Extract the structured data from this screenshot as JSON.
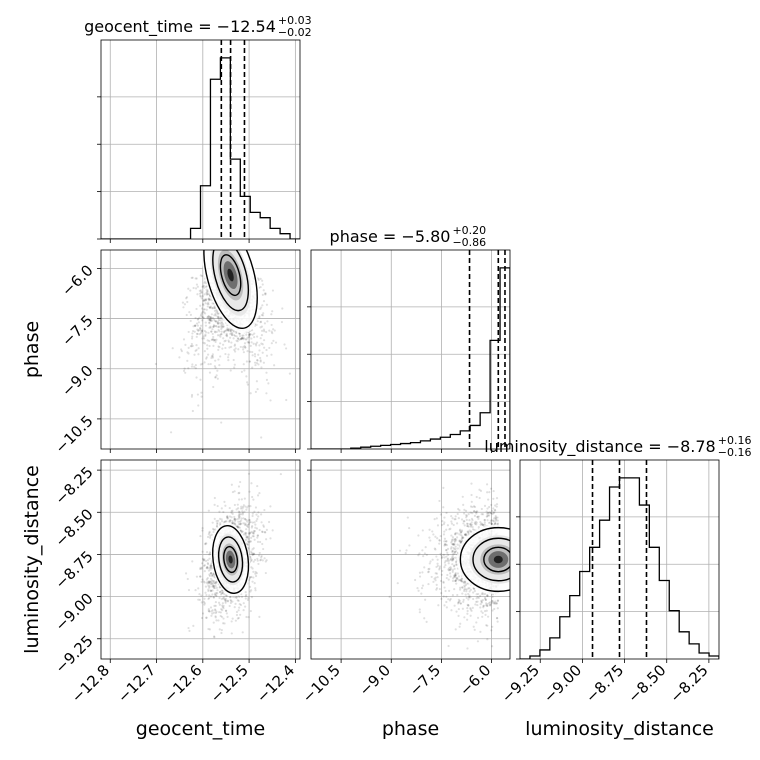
{
  "chart_data": {
    "type": "corner",
    "parameters": [
      "geocent_time",
      "phase",
      "luminosity_distance"
    ],
    "diagonal_titles": [
      {
        "prefix": "geocent_time = −12.54",
        "plus": "+0.03",
        "minus": "−0.02"
      },
      {
        "prefix": "phase = −5.80",
        "plus": "+0.20",
        "minus": "−0.86"
      },
      {
        "prefix": "luminosity_distance = −8.78",
        "plus": "+0.16",
        "minus": "−0.16"
      }
    ],
    "axes": {
      "geocent_time": {
        "range": [
          -12.82,
          -12.39
        ],
        "ticks": [
          -12.8,
          -12.7,
          -12.6,
          -12.5,
          -12.4
        ],
        "tick_labels": [
          "−12.8",
          "−12.7",
          "−12.6",
          "−12.5",
          "−12.4"
        ]
      },
      "phase": {
        "range": [
          -11.4,
          -5.45
        ],
        "ticks": [
          -10.5,
          -9.0,
          -7.5,
          -6.0
        ],
        "tick_labels": [
          "−10.5",
          "−9.0",
          "−7.5",
          "−6.0"
        ]
      },
      "luminosity_distance": {
        "range": [
          -9.37,
          -8.19
        ],
        "ticks": [
          -9.25,
          -9.0,
          -8.75,
          -8.5,
          -8.25
        ],
        "tick_labels": [
          "−9.25",
          "−9.00",
          "−8.75",
          "−8.50",
          "−8.25"
        ]
      }
    },
    "histograms": [
      {
        "param": "geocent_time",
        "bins": [
          -12.82,
          -12.7985,
          -12.777,
          -12.7555,
          -12.734,
          -12.7125,
          -12.691,
          -12.6695,
          -12.648,
          -12.6265,
          -12.605,
          -12.5835,
          -12.562,
          -12.5405,
          -12.519,
          -12.4975,
          -12.476,
          -12.4545,
          -12.433,
          -12.4115,
          -12.39
        ],
        "counts": [
          0,
          0,
          0,
          0,
          0,
          0,
          0,
          0,
          0,
          2,
          10,
          30,
          34,
          15,
          8,
          5,
          4,
          2,
          1,
          0
        ],
        "quantiles": [
          -12.56,
          -12.54,
          -12.51
        ]
      },
      {
        "param": "phase",
        "bins": [
          -11.4,
          -11.1025,
          -10.805,
          -10.5075,
          -10.21,
          -9.9125,
          -9.615,
          -9.3175,
          -9.02,
          -8.7225,
          -8.425,
          -8.1275,
          -7.83,
          -7.5325,
          -7.235,
          -6.9375,
          -6.64,
          -6.3425,
          -6.045,
          -5.7475,
          -5.45
        ],
        "counts": [
          0,
          0,
          0,
          0,
          0.5,
          1,
          1.5,
          2,
          2.5,
          3,
          3.5,
          4.5,
          5.5,
          6.5,
          8,
          10,
          13,
          20,
          60,
          100
        ],
        "quantiles": [
          -6.66,
          -5.8,
          -5.6
        ]
      },
      {
        "param": "luminosity_distance",
        "bins": [
          -9.37,
          -9.311,
          -9.252,
          -9.193,
          -9.134,
          -9.075,
          -9.016,
          -8.957,
          -8.898,
          -8.839,
          -8.78,
          -8.721,
          -8.662,
          -8.603,
          -8.544,
          -8.485,
          -8.426,
          -8.367,
          -8.308,
          -8.249,
          -8.19
        ],
        "counts": [
          0,
          1,
          3,
          7,
          14,
          21,
          29,
          37,
          46,
          57,
          60,
          60,
          51,
          37,
          26,
          16,
          9,
          5,
          2,
          1
        ],
        "quantiles": [
          -8.94,
          -8.78,
          -8.62
        ]
      }
    ],
    "hist2d": [
      {
        "x_param": "geocent_time",
        "y_param": "phase",
        "center": [
          -12.54,
          -6.2
        ],
        "spread": [
          0.04,
          1.3
        ],
        "correlation": 0.6,
        "contour_levels": [
          0.4,
          0.7,
          0.9
        ]
      },
      {
        "x_param": "geocent_time",
        "y_param": "luminosity_distance",
        "center": [
          -12.54,
          -8.78
        ],
        "spread": [
          0.03,
          0.16
        ],
        "correlation": 0.3,
        "contour_levels": [
          0.4,
          0.7,
          0.9
        ]
      },
      {
        "x_param": "phase",
        "y_param": "luminosity_distance",
        "center": [
          -5.8,
          -8.78
        ],
        "spread": [
          0.9,
          0.15
        ],
        "correlation": 0.0,
        "contour_levels": [
          0.4,
          0.7,
          0.9
        ]
      }
    ],
    "xlabels": [
      "geocent_time",
      "phase",
      "luminosity_distance"
    ],
    "ylabels": [
      "",
      "phase",
      "luminosity_distance"
    ],
    "grid": true
  }
}
